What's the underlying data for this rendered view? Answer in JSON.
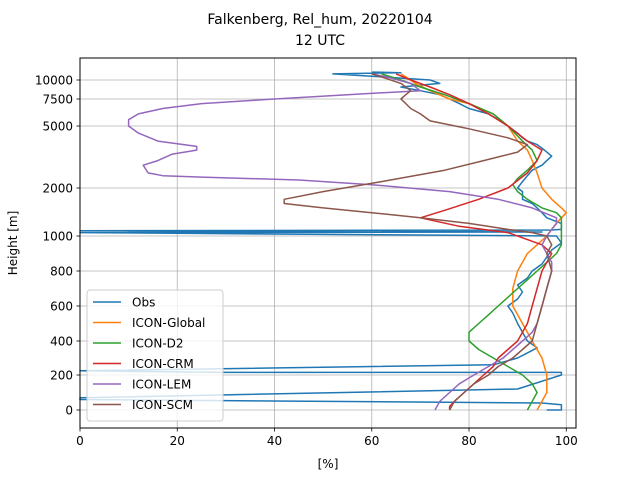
{
  "chart_data": {
    "type": "line",
    "title": "Falkenberg, Rel_hum, 20220104",
    "subtitle": "12 UTC",
    "xlabel": "[%]",
    "ylabel": "Height [m]",
    "xlim": [
      0,
      102
    ],
    "x_ticks": [
      0,
      20,
      40,
      60,
      80,
      100
    ],
    "y_ticks": [
      {
        "value": 10000,
        "label": "10000"
      },
      {
        "value": 7500,
        "label": "7500"
      },
      {
        "value": 5000,
        "label": "5000"
      },
      {
        "value": 2000,
        "label": "2000"
      },
      {
        "value": 1000,
        "label": "1000"
      },
      {
        "value": 800,
        "label": "800"
      },
      {
        "value": 600,
        "label": "600"
      },
      {
        "value": 400,
        "label": "400"
      },
      {
        "value": 200,
        "label": "200"
      },
      {
        "value": 0,
        "label": "0"
      }
    ],
    "grid": true,
    "legend_position": "lower-left",
    "series": [
      {
        "name": "Obs",
        "color": "#1f77b4",
        "points": [
          [
            96,
            0
          ],
          [
            99,
            0
          ],
          [
            99,
            30
          ],
          [
            95,
            40
          ],
          [
            0,
            60
          ],
          [
            0,
            70
          ],
          [
            90,
            120
          ],
          [
            99,
            200
          ],
          [
            99,
            215
          ],
          [
            30,
            215
          ],
          [
            0,
            225
          ],
          [
            85,
            260
          ],
          [
            90,
            300
          ],
          [
            92,
            330
          ],
          [
            94,
            360
          ],
          [
            92,
            400
          ],
          [
            91,
            450
          ],
          [
            90,
            500
          ],
          [
            89,
            560
          ],
          [
            88,
            600
          ],
          [
            90,
            640
          ],
          [
            91,
            680
          ],
          [
            90,
            720
          ],
          [
            92,
            760
          ],
          [
            93,
            800
          ],
          [
            95,
            840
          ],
          [
            96,
            880
          ],
          [
            97,
            920
          ],
          [
            99,
            960
          ],
          [
            98,
            1000
          ],
          [
            0,
            1050
          ],
          [
            95,
            1060
          ],
          [
            0,
            1080
          ],
          [
            97,
            1090
          ],
          [
            99,
            1100
          ],
          [
            99,
            1200
          ],
          [
            96,
            1300
          ],
          [
            95,
            1400
          ],
          [
            94,
            1500
          ],
          [
            93,
            1600
          ],
          [
            91,
            1700
          ],
          [
            91,
            1800
          ],
          [
            91,
            1900
          ],
          [
            90,
            2000
          ],
          [
            91,
            2200
          ],
          [
            92,
            2400
          ],
          [
            93,
            2600
          ],
          [
            95,
            2800
          ],
          [
            96,
            3000
          ],
          [
            97,
            3200
          ],
          [
            96,
            3400
          ],
          [
            95,
            3600
          ],
          [
            94,
            3800
          ],
          [
            92,
            4000
          ],
          [
            91,
            4200
          ],
          [
            90,
            4500
          ],
          [
            88,
            5000
          ],
          [
            86,
            5500
          ],
          [
            84,
            6000
          ],
          [
            80,
            6500
          ],
          [
            78,
            7000
          ],
          [
            76,
            7500
          ],
          [
            74,
            8000
          ],
          [
            70,
            8500
          ],
          [
            66,
            9000
          ],
          [
            74,
            9500
          ],
          [
            72,
            10000
          ],
          [
            62,
            10500
          ],
          [
            52,
            11000
          ],
          [
            66,
            11200
          ],
          [
            60,
            11300
          ]
        ]
      },
      {
        "name": "ICON-Global",
        "color": "#ff7f0e",
        "points": [
          [
            94,
            0
          ],
          [
            95,
            50
          ],
          [
            96,
            100
          ],
          [
            96,
            200
          ],
          [
            95,
            300
          ],
          [
            93,
            400
          ],
          [
            91,
            500
          ],
          [
            89,
            600
          ],
          [
            89,
            700
          ],
          [
            90,
            800
          ],
          [
            92,
            900
          ],
          [
            94,
            950
          ],
          [
            96,
            1000
          ],
          [
            97,
            1100
          ],
          [
            98,
            1200
          ],
          [
            99,
            1300
          ],
          [
            100,
            1400
          ],
          [
            99,
            1500
          ],
          [
            97,
            1700
          ],
          [
            95,
            2000
          ],
          [
            94,
            2500
          ],
          [
            93,
            3000
          ],
          [
            92,
            3500
          ],
          [
            90,
            4000
          ],
          [
            88,
            5000
          ],
          [
            85,
            6000
          ],
          [
            80,
            7000
          ],
          [
            76,
            7500
          ],
          [
            72,
            8500
          ],
          [
            69,
            9500
          ],
          [
            67,
            10500
          ],
          [
            66,
            11000
          ]
        ]
      },
      {
        "name": "ICON-D2",
        "color": "#2ca02c",
        "points": [
          [
            92,
            0
          ],
          [
            93,
            50
          ],
          [
            94,
            100
          ],
          [
            93,
            150
          ],
          [
            91,
            200
          ],
          [
            88,
            250
          ],
          [
            85,
            300
          ],
          [
            82,
            350
          ],
          [
            80,
            400
          ],
          [
            80,
            450
          ],
          [
            82,
            500
          ],
          [
            84,
            550
          ],
          [
            86,
            600
          ],
          [
            88,
            650
          ],
          [
            90,
            700
          ],
          [
            92,
            750
          ],
          [
            94,
            800
          ],
          [
            96,
            850
          ],
          [
            98,
            900
          ],
          [
            99,
            950
          ],
          [
            99,
            1000
          ],
          [
            99,
            1100
          ],
          [
            99,
            1200
          ],
          [
            99,
            1300
          ],
          [
            98,
            1400
          ],
          [
            95,
            1500
          ],
          [
            92,
            1700
          ],
          [
            90,
            1900
          ],
          [
            89,
            2100
          ],
          [
            90,
            2300
          ],
          [
            92,
            2600
          ],
          [
            94,
            3000
          ],
          [
            93,
            3500
          ],
          [
            91,
            4000
          ],
          [
            88,
            5000
          ],
          [
            85,
            6000
          ],
          [
            80,
            7000
          ],
          [
            75,
            8000
          ],
          [
            70,
            9000
          ],
          [
            66,
            10000
          ],
          [
            62,
            11000
          ]
        ]
      },
      {
        "name": "ICON-CRM",
        "color": "#d62728",
        "points": [
          [
            76,
            0
          ],
          [
            76,
            20
          ],
          [
            77,
            50
          ],
          [
            79,
            100
          ],
          [
            81,
            150
          ],
          [
            83,
            200
          ],
          [
            85,
            250
          ],
          [
            86,
            300
          ],
          [
            88,
            350
          ],
          [
            90,
            400
          ],
          [
            91,
            450
          ],
          [
            92,
            500
          ],
          [
            93,
            600
          ],
          [
            94,
            700
          ],
          [
            95,
            800
          ],
          [
            96,
            850
          ],
          [
            97,
            900
          ],
          [
            95,
            950
          ],
          [
            88,
            1050
          ],
          [
            78,
            1150
          ],
          [
            70,
            1300
          ],
          [
            75,
            1450
          ],
          [
            82,
            1700
          ],
          [
            88,
            2000
          ],
          [
            92,
            2500
          ],
          [
            94,
            3000
          ],
          [
            95,
            3500
          ],
          [
            92,
            4000
          ],
          [
            88,
            5000
          ],
          [
            84,
            6000
          ],
          [
            80,
            7000
          ],
          [
            76,
            8000
          ],
          [
            72,
            9000
          ],
          [
            68,
            10000
          ],
          [
            65,
            11000
          ]
        ]
      },
      {
        "name": "ICON-LEM",
        "color": "#9467bd",
        "points": [
          [
            73,
            0
          ],
          [
            74,
            50
          ],
          [
            76,
            100
          ],
          [
            78,
            150
          ],
          [
            81,
            200
          ],
          [
            84,
            250
          ],
          [
            87,
            300
          ],
          [
            89,
            350
          ],
          [
            91,
            400
          ],
          [
            93,
            450
          ],
          [
            94,
            500
          ],
          [
            95,
            600
          ],
          [
            96,
            700
          ],
          [
            97,
            800
          ],
          [
            97,
            850
          ],
          [
            96,
            900
          ],
          [
            95,
            950
          ],
          [
            96,
            1000
          ],
          [
            97,
            1100
          ],
          [
            98,
            1200
          ],
          [
            98,
            1300
          ],
          [
            93,
            1500
          ],
          [
            86,
            1700
          ],
          [
            76,
            1900
          ],
          [
            60,
            2100
          ],
          [
            45,
            2250
          ],
          [
            25,
            2350
          ],
          [
            17,
            2400
          ],
          [
            14,
            2500
          ],
          [
            13,
            2800
          ],
          [
            16,
            3000
          ],
          [
            19,
            3300
          ],
          [
            24,
            3500
          ],
          [
            24,
            3700
          ],
          [
            16,
            4000
          ],
          [
            12,
            4500
          ],
          [
            10,
            5000
          ],
          [
            10,
            5500
          ],
          [
            12,
            6000
          ],
          [
            17,
            6500
          ],
          [
            25,
            7000
          ],
          [
            40,
            7500
          ],
          [
            55,
            8000
          ],
          [
            70,
            8500
          ],
          [
            68,
            9500
          ],
          [
            63,
            10500
          ],
          [
            60,
            11000
          ]
        ]
      },
      {
        "name": "ICON-SCM",
        "color": "#8c564b",
        "points": [
          [
            76,
            0
          ],
          [
            77,
            50
          ],
          [
            79,
            100
          ],
          [
            81,
            150
          ],
          [
            84,
            200
          ],
          [
            86,
            250
          ],
          [
            89,
            300
          ],
          [
            91,
            350
          ],
          [
            93,
            400
          ],
          [
            94,
            500
          ],
          [
            95,
            600
          ],
          [
            96,
            700
          ],
          [
            97,
            800
          ],
          [
            96,
            900
          ],
          [
            97,
            950
          ],
          [
            96,
            1000
          ],
          [
            93,
            1050
          ],
          [
            88,
            1100
          ],
          [
            80,
            1200
          ],
          [
            70,
            1300
          ],
          [
            60,
            1400
          ],
          [
            50,
            1500
          ],
          [
            42,
            1600
          ],
          [
            42,
            1700
          ],
          [
            50,
            1900
          ],
          [
            62,
            2200
          ],
          [
            75,
            2600
          ],
          [
            83,
            3000
          ],
          [
            90,
            3400
          ],
          [
            92,
            3800
          ],
          [
            88,
            4200
          ],
          [
            80,
            4800
          ],
          [
            72,
            5400
          ],
          [
            70,
            6000
          ],
          [
            68,
            6500
          ],
          [
            67,
            7000
          ],
          [
            66,
            7500
          ],
          [
            67,
            8000
          ],
          [
            68,
            8500
          ],
          [
            66,
            9500
          ],
          [
            62,
            10500
          ],
          [
            60,
            11000
          ]
        ]
      }
    ]
  }
}
